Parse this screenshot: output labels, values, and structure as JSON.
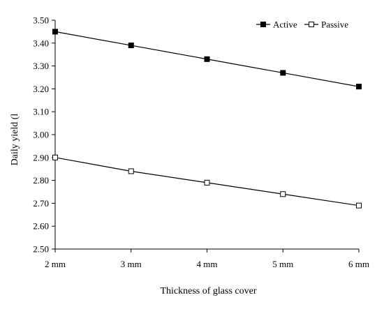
{
  "chart_data": {
    "type": "line",
    "categories": [
      "2 mm",
      "3 mm",
      "4 mm",
      "5 mm",
      "6 mm"
    ],
    "series": [
      {
        "name": "Active",
        "values": [
          3.45,
          3.39,
          3.33,
          3.27,
          3.21
        ],
        "marker": "filled-square",
        "color": "#000000"
      },
      {
        "name": "Passive",
        "values": [
          2.9,
          2.84,
          2.79,
          2.74,
          2.69
        ],
        "marker": "hollow-square",
        "color": "#000000"
      }
    ],
    "xlabel": "Thickness of glass cover",
    "ylabel": "Daily yield (l",
    "ylim": [
      2.5,
      3.5
    ],
    "yticks": [
      "2.50",
      "2.60",
      "2.70",
      "2.80",
      "2.90",
      "3.00",
      "3.10",
      "3.20",
      "3.30",
      "3.40",
      "3.50"
    ],
    "grid": false,
    "legend_position": "top-right"
  }
}
